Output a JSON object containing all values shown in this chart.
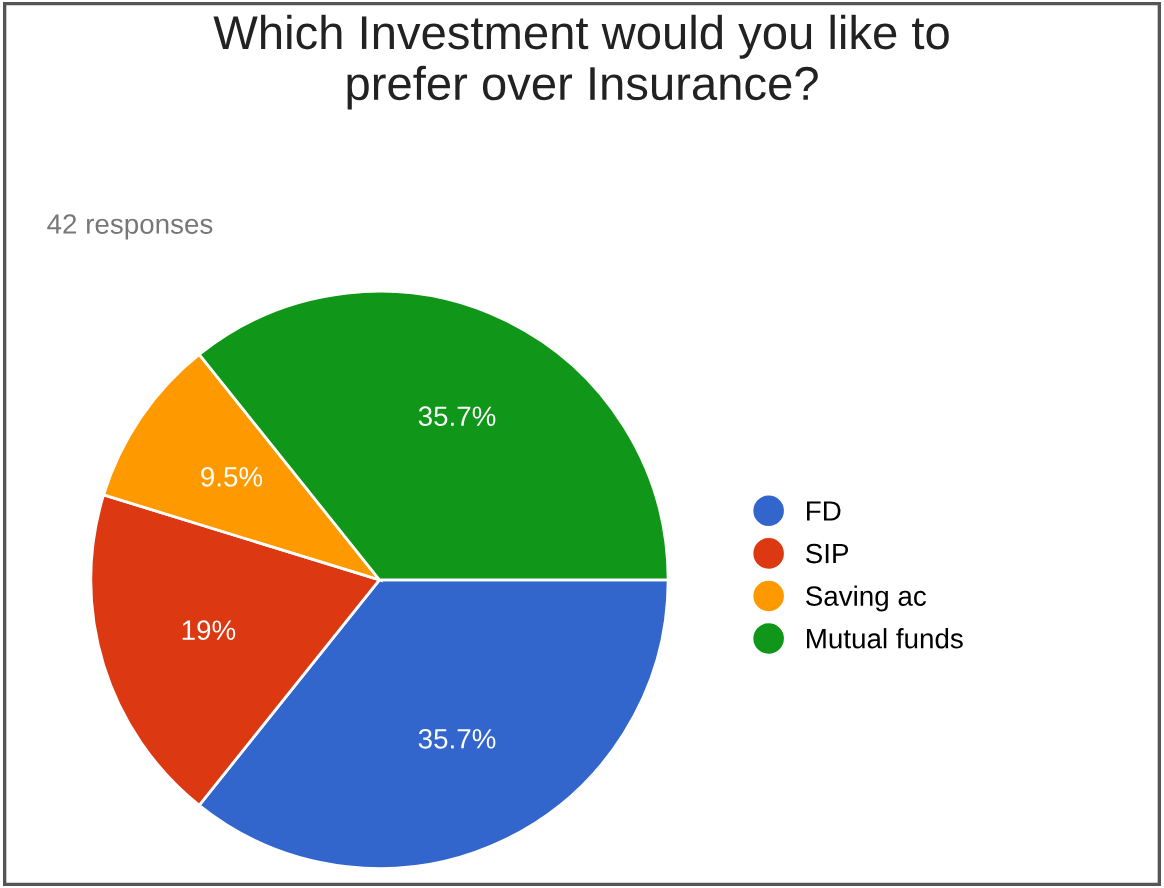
{
  "chart_data": {
    "type": "pie",
    "title": "Which Investment would you like to prefer over Insurance?",
    "subtitle": "42 responses",
    "categories": [
      "FD",
      "SIP",
      "Saving ac",
      "Mutual funds"
    ],
    "values": [
      35.7,
      19,
      9.5,
      35.7
    ],
    "colors": [
      "#3366cc",
      "#dc3912",
      "#ff9900",
      "#109618"
    ],
    "value_labels": [
      "35.7%",
      "19%",
      "9.5%",
      "35.7%"
    ],
    "legend": "right"
  }
}
